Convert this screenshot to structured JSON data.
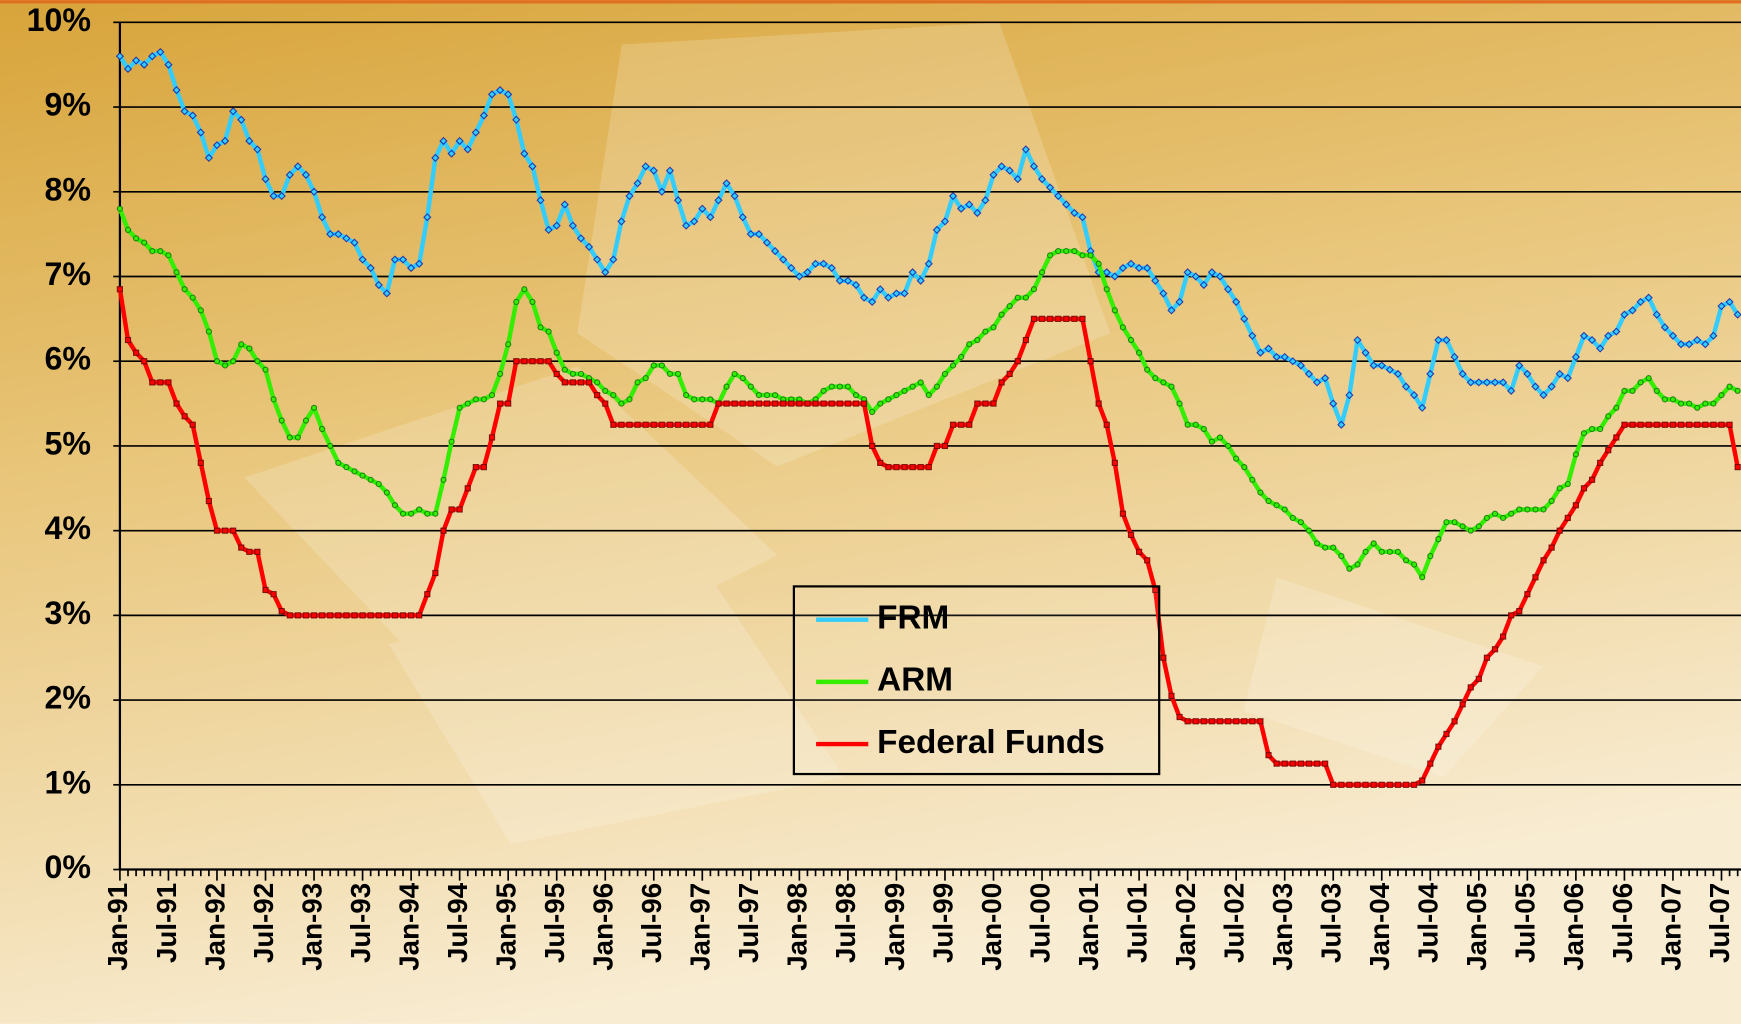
{
  "chart_data": {
    "type": "line",
    "categories": [
      "Jan-91",
      null,
      null,
      null,
      null,
      null,
      "Jul-91",
      null,
      null,
      null,
      null,
      null,
      "Jan-92",
      null,
      null,
      null,
      null,
      null,
      "Jul-92",
      null,
      null,
      null,
      null,
      null,
      "Jan-93",
      null,
      null,
      null,
      null,
      null,
      "Jul-93",
      null,
      null,
      null,
      null,
      null,
      "Jan-94",
      null,
      null,
      null,
      null,
      null,
      "Jul-94",
      null,
      null,
      null,
      null,
      null,
      "Jan-95",
      null,
      null,
      null,
      null,
      null,
      "Jul-95",
      null,
      null,
      null,
      null,
      null,
      "Jan-96",
      null,
      null,
      null,
      null,
      null,
      "Jul-96",
      null,
      null,
      null,
      null,
      null,
      "Jan-97",
      null,
      null,
      null,
      null,
      null,
      "Jul-97",
      null,
      null,
      null,
      null,
      null,
      "Jan-98",
      null,
      null,
      null,
      null,
      null,
      "Jul-98",
      null,
      null,
      null,
      null,
      null,
      "Jan-99",
      null,
      null,
      null,
      null,
      null,
      "Jul-99",
      null,
      null,
      null,
      null,
      null,
      "Jan-00",
      null,
      null,
      null,
      null,
      null,
      "Jul-00",
      null,
      null,
      null,
      null,
      null,
      "Jan-01",
      null,
      null,
      null,
      null,
      null,
      "Jul-01",
      null,
      null,
      null,
      null,
      null,
      "Jan-02",
      null,
      null,
      null,
      null,
      null,
      "Jul-02",
      null,
      null,
      null,
      null,
      null,
      "Jan-03",
      null,
      null,
      null,
      null,
      null,
      "Jul-03",
      null,
      null,
      null,
      null,
      null,
      "Jan-04",
      null,
      null,
      null,
      null,
      null,
      "Jul-04",
      null,
      null,
      null,
      null,
      null,
      "Jan-05",
      null,
      null,
      null,
      null,
      null,
      "Jul-05",
      null,
      null,
      null,
      null,
      null,
      "Jan-06",
      null,
      null,
      null,
      null,
      null,
      "Jul-06",
      null,
      null,
      null,
      null,
      null,
      "Jan-07",
      null,
      null,
      null,
      null,
      null,
      "Jul-07",
      null,
      null
    ],
    "series": [
      {
        "name": "FRM",
        "color": "#33ccff",
        "values": [
          9.6,
          9.45,
          9.55,
          9.5,
          9.6,
          9.65,
          9.5,
          9.2,
          8.95,
          8.9,
          8.7,
          8.4,
          8.55,
          8.6,
          8.95,
          8.85,
          8.6,
          8.5,
          8.15,
          7.95,
          7.95,
          8.2,
          8.3,
          8.2,
          8.0,
          7.7,
          7.5,
          7.5,
          7.45,
          7.4,
          7.2,
          7.1,
          6.9,
          6.8,
          7.2,
          7.2,
          7.1,
          7.15,
          7.7,
          8.4,
          8.6,
          8.45,
          8.6,
          8.5,
          8.7,
          8.9,
          9.15,
          9.2,
          9.15,
          8.85,
          8.45,
          8.3,
          7.9,
          7.55,
          7.6,
          7.85,
          7.6,
          7.45,
          7.35,
          7.2,
          7.05,
          7.2,
          7.65,
          7.95,
          8.1,
          8.3,
          8.25,
          8.0,
          8.25,
          7.9,
          7.6,
          7.65,
          7.8,
          7.7,
          7.9,
          8.1,
          7.95,
          7.7,
          7.5,
          7.5,
          7.4,
          7.3,
          7.2,
          7.1,
          7.0,
          7.05,
          7.15,
          7.15,
          7.1,
          6.95,
          6.95,
          6.9,
          6.75,
          6.7,
          6.85,
          6.75,
          6.8,
          6.8,
          7.05,
          6.95,
          7.15,
          7.55,
          7.65,
          7.95,
          7.8,
          7.85,
          7.75,
          7.9,
          8.2,
          8.3,
          8.25,
          8.15,
          8.5,
          8.3,
          8.15,
          8.05,
          7.95,
          7.85,
          7.75,
          7.7,
          7.3,
          7.05,
          7.05,
          7.0,
          7.1,
          7.15,
          7.1,
          7.1,
          6.95,
          6.8,
          6.6,
          6.7,
          7.05,
          7.0,
          6.9,
          7.05,
          7.0,
          6.85,
          6.7,
          6.5,
          6.3,
          6.1,
          6.15,
          6.05,
          6.05,
          6.0,
          5.95,
          5.85,
          5.75,
          5.8,
          5.5,
          5.25,
          5.6,
          6.25,
          6.1,
          5.95,
          5.95,
          5.9,
          5.85,
          5.7,
          5.6,
          5.45,
          5.85,
          6.25,
          6.25,
          6.05,
          5.85,
          5.75,
          5.75,
          5.75,
          5.75,
          5.75,
          5.65,
          5.95,
          5.85,
          5.7,
          5.6,
          5.7,
          5.85,
          5.8,
          6.05,
          6.3,
          6.25,
          6.15,
          6.3,
          6.35,
          6.55,
          6.6,
          6.7,
          6.75,
          6.55,
          6.4,
          6.3,
          6.2,
          6.2,
          6.25,
          6.2,
          6.3,
          6.65,
          6.7,
          6.55
        ]
      },
      {
        "name": "ARM",
        "color": "#33ee00",
        "values": [
          7.8,
          7.55,
          7.45,
          7.4,
          7.3,
          7.3,
          7.25,
          7.05,
          6.85,
          6.75,
          6.6,
          6.35,
          6.0,
          5.95,
          6.0,
          6.2,
          6.15,
          6.0,
          5.9,
          5.55,
          5.3,
          5.1,
          5.1,
          5.3,
          5.45,
          5.2,
          5.0,
          4.8,
          4.75,
          4.7,
          4.65,
          4.6,
          4.55,
          4.45,
          4.3,
          4.2,
          4.2,
          4.25,
          4.2,
          4.2,
          4.6,
          5.05,
          5.45,
          5.5,
          5.55,
          5.55,
          5.6,
          5.85,
          6.2,
          6.7,
          6.85,
          6.7,
          6.4,
          6.35,
          6.1,
          5.9,
          5.85,
          5.85,
          5.8,
          5.75,
          5.65,
          5.6,
          5.5,
          5.55,
          5.75,
          5.8,
          5.95,
          5.95,
          5.85,
          5.85,
          5.6,
          5.55,
          5.55,
          5.55,
          5.5,
          5.7,
          5.85,
          5.8,
          5.7,
          5.6,
          5.6,
          5.6,
          5.55,
          5.55,
          5.55,
          5.5,
          5.55,
          5.65,
          5.7,
          5.7,
          5.7,
          5.6,
          5.55,
          5.4,
          5.5,
          5.55,
          5.6,
          5.65,
          5.7,
          5.75,
          5.6,
          5.7,
          5.85,
          5.95,
          6.05,
          6.2,
          6.25,
          6.35,
          6.4,
          6.55,
          6.65,
          6.75,
          6.75,
          6.85,
          7.05,
          7.25,
          7.3,
          7.3,
          7.3,
          7.25,
          7.25,
          7.15,
          6.85,
          6.6,
          6.4,
          6.25,
          6.1,
          5.9,
          5.8,
          5.75,
          5.7,
          5.5,
          5.25,
          5.25,
          5.2,
          5.05,
          5.1,
          5.0,
          4.85,
          4.75,
          4.6,
          4.45,
          4.35,
          4.3,
          4.25,
          4.15,
          4.1,
          4.0,
          3.85,
          3.8,
          3.8,
          3.7,
          3.55,
          3.6,
          3.75,
          3.85,
          3.75,
          3.75,
          3.75,
          3.65,
          3.6,
          3.45,
          3.7,
          3.9,
          4.1,
          4.1,
          4.05,
          4.0,
          4.05,
          4.15,
          4.2,
          4.15,
          4.2,
          4.25,
          4.25,
          4.25,
          4.25,
          4.35,
          4.5,
          4.55,
          4.9,
          5.15,
          5.2,
          5.2,
          5.35,
          5.45,
          5.65,
          5.65,
          5.75,
          5.8,
          5.65,
          5.55,
          5.55,
          5.5,
          5.5,
          5.45,
          5.5,
          5.5,
          5.6,
          5.7,
          5.65
        ]
      },
      {
        "name": "Federal Funds",
        "color": "#ff0000",
        "values": [
          6.85,
          6.25,
          6.1,
          6.0,
          5.75,
          5.75,
          5.75,
          5.5,
          5.35,
          5.25,
          4.8,
          4.35,
          4.0,
          4.0,
          4.0,
          3.8,
          3.75,
          3.75,
          3.3,
          3.25,
          3.05,
          3.0,
          3.0,
          3.0,
          3.0,
          3.0,
          3.0,
          3.0,
          3.0,
          3.0,
          3.0,
          3.0,
          3.0,
          3.0,
          3.0,
          3.0,
          3.0,
          3.0,
          3.25,
          3.5,
          4.0,
          4.25,
          4.25,
          4.5,
          4.75,
          4.75,
          5.1,
          5.5,
          5.5,
          6.0,
          6.0,
          6.0,
          6.0,
          6.0,
          5.85,
          5.75,
          5.75,
          5.75,
          5.75,
          5.6,
          5.5,
          5.25,
          5.25,
          5.25,
          5.25,
          5.25,
          5.25,
          5.25,
          5.25,
          5.25,
          5.25,
          5.25,
          5.25,
          5.25,
          5.5,
          5.5,
          5.5,
          5.5,
          5.5,
          5.5,
          5.5,
          5.5,
          5.5,
          5.5,
          5.5,
          5.5,
          5.5,
          5.5,
          5.5,
          5.5,
          5.5,
          5.5,
          5.5,
          5.0,
          4.8,
          4.75,
          4.75,
          4.75,
          4.75,
          4.75,
          4.75,
          5.0,
          5.0,
          5.25,
          5.25,
          5.25,
          5.5,
          5.5,
          5.5,
          5.75,
          5.85,
          6.0,
          6.25,
          6.5,
          6.5,
          6.5,
          6.5,
          6.5,
          6.5,
          6.5,
          6.0,
          5.5,
          5.25,
          4.8,
          4.2,
          3.95,
          3.75,
          3.65,
          3.3,
          2.5,
          2.05,
          1.8,
          1.75,
          1.75,
          1.75,
          1.75,
          1.75,
          1.75,
          1.75,
          1.75,
          1.75,
          1.75,
          1.35,
          1.25,
          1.25,
          1.25,
          1.25,
          1.25,
          1.25,
          1.25,
          1.0,
          1.0,
          1.0,
          1.0,
          1.0,
          1.0,
          1.0,
          1.0,
          1.0,
          1.0,
          1.0,
          1.05,
          1.25,
          1.45,
          1.6,
          1.75,
          1.95,
          2.15,
          2.25,
          2.5,
          2.6,
          2.75,
          3.0,
          3.05,
          3.25,
          3.45,
          3.65,
          3.8,
          4.0,
          4.15,
          4.3,
          4.5,
          4.6,
          4.8,
          4.95,
          5.1,
          5.25,
          5.25,
          5.25,
          5.25,
          5.25,
          5.25,
          5.25,
          5.25,
          5.25,
          5.25,
          5.25,
          5.25,
          5.25,
          5.25,
          4.75
        ]
      }
    ],
    "ylim": [
      0,
      10
    ],
    "yticks": [
      {
        "value": 0,
        "label": "0%"
      },
      {
        "value": 1,
        "label": "1%"
      },
      {
        "value": 2,
        "label": "2%"
      },
      {
        "value": 3,
        "label": "3%"
      },
      {
        "value": 4,
        "label": "4%"
      },
      {
        "value": 5,
        "label": "5%"
      },
      {
        "value": 6,
        "label": "6%"
      },
      {
        "value": 7,
        "label": "7%"
      },
      {
        "value": 8,
        "label": "8%"
      },
      {
        "value": 9,
        "label": "9%"
      },
      {
        "value": 10,
        "label": "10%"
      }
    ],
    "grid": true
  }
}
